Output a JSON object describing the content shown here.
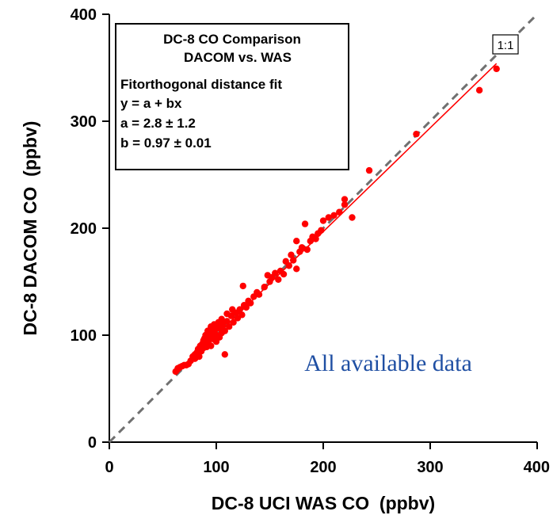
{
  "chart_data": {
    "type": "scatter",
    "xlabel": "DC-8 UCI WAS CO  (ppbv)",
    "ylabel": "DC-8 DACOM CO  (ppbv)",
    "xlim": [
      0,
      400
    ],
    "ylim": [
      0,
      400
    ],
    "xticks": [
      "0",
      "100",
      "200",
      "300",
      "400"
    ],
    "yticks": [
      "0",
      "100",
      "200",
      "300",
      "400"
    ],
    "grid": false,
    "info_box": {
      "title_line1": "DC-8 CO Comparison",
      "title_line2": "DACOM vs. WAS",
      "fit_title": "Fitorthogonal distance fit",
      "equation": "y = a + bx",
      "a_value": "a = 2.8 ± 1.2",
      "b_value": "b = 0.97 ± 0.01"
    },
    "one_to_one_label": "1:1",
    "annotation": "All available data",
    "fit": {
      "a": 2.8,
      "b": 0.97,
      "x_range": [
        62,
        362
      ]
    },
    "colors": {
      "points": "#ff0000",
      "fit_line": "#ff0000",
      "identity_line": "#707070",
      "annotation": "#1f4fa3"
    },
    "points": [
      [
        62,
        66
      ],
      [
        64,
        69
      ],
      [
        66,
        70
      ],
      [
        68,
        71
      ],
      [
        70,
        72
      ],
      [
        72,
        72
      ],
      [
        74,
        73
      ],
      [
        76,
        76
      ],
      [
        78,
        80
      ],
      [
        80,
        82
      ],
      [
        80,
        78
      ],
      [
        82,
        84
      ],
      [
        83,
        87
      ],
      [
        84,
        80
      ],
      [
        85,
        90
      ],
      [
        86,
        85
      ],
      [
        87,
        92
      ],
      [
        88,
        88
      ],
      [
        88,
        95
      ],
      [
        89,
        97
      ],
      [
        90,
        93
      ],
      [
        90,
        100
      ],
      [
        91,
        89
      ],
      [
        92,
        98
      ],
      [
        92,
        104
      ],
      [
        93,
        95
      ],
      [
        94,
        101
      ],
      [
        95,
        108
      ],
      [
        95,
        90
      ],
      [
        96,
        99
      ],
      [
        97,
        103
      ],
      [
        98,
        96
      ],
      [
        98,
        110
      ],
      [
        99,
        105
      ],
      [
        100,
        100
      ],
      [
        100,
        94
      ],
      [
        101,
        108
      ],
      [
        102,
        112
      ],
      [
        103,
        98
      ],
      [
        104,
        106
      ],
      [
        105,
        102
      ],
      [
        105,
        115
      ],
      [
        106,
        110
      ],
      [
        108,
        82
      ],
      [
        108,
        104
      ],
      [
        110,
        113
      ],
      [
        110,
        120
      ],
      [
        112,
        108
      ],
      [
        114,
        118
      ],
      [
        115,
        124
      ],
      [
        116,
        112
      ],
      [
        118,
        121
      ],
      [
        120,
        116
      ],
      [
        122,
        124
      ],
      [
        124,
        119
      ],
      [
        126,
        128
      ],
      [
        125,
        146
      ],
      [
        128,
        126
      ],
      [
        130,
        132
      ],
      [
        132,
        130
      ],
      [
        135,
        136
      ],
      [
        138,
        140
      ],
      [
        140,
        138
      ],
      [
        145,
        145
      ],
      [
        148,
        156
      ],
      [
        150,
        150
      ],
      [
        152,
        154
      ],
      [
        155,
        158
      ],
      [
        158,
        152
      ],
      [
        160,
        160
      ],
      [
        163,
        157
      ],
      [
        165,
        169
      ],
      [
        168,
        165
      ],
      [
        170,
        175
      ],
      [
        172,
        170
      ],
      [
        175,
        188
      ],
      [
        175,
        162
      ],
      [
        178,
        178
      ],
      [
        180,
        182
      ],
      [
        183,
        204
      ],
      [
        185,
        180
      ],
      [
        188,
        188
      ],
      [
        190,
        192
      ],
      [
        193,
        190
      ],
      [
        195,
        195
      ],
      [
        198,
        198
      ],
      [
        200,
        207
      ],
      [
        205,
        210
      ],
      [
        210,
        212
      ],
      [
        215,
        215
      ],
      [
        220,
        222
      ],
      [
        220,
        227
      ],
      [
        227,
        210
      ],
      [
        243,
        254
      ],
      [
        287,
        288
      ],
      [
        346,
        329
      ],
      [
        362,
        349
      ]
    ]
  }
}
